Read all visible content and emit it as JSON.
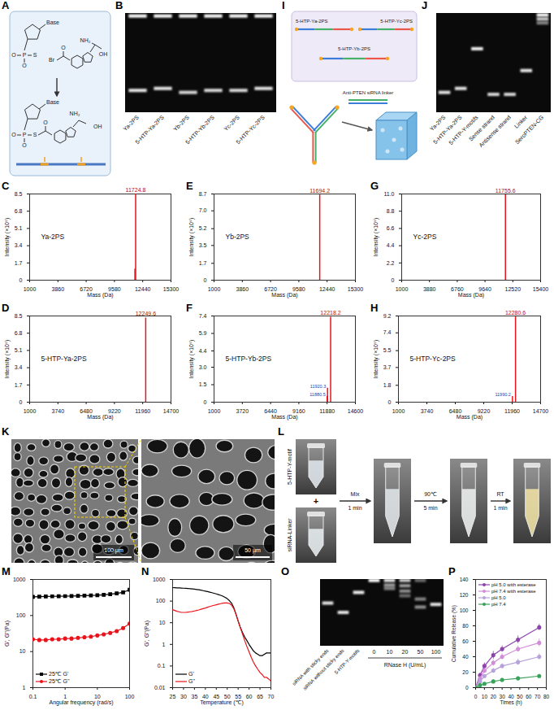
{
  "diagrams": [
    {
      "type": "scheme",
      "panel": "A",
      "labels": {
        "base": "Base",
        "bromine": "Br",
        "hydroxyl": "OH",
        "amine": "NH₂",
        "oxygen": "O",
        "phosphorus": "P",
        "sulfur": "S"
      }
    },
    {
      "type": "gel",
      "panel": "B",
      "lanes": [
        {
          "label": "Ya-2PS",
          "bands": [
            [
              0.03,
              1
            ],
            [
              0.78,
              0.9
            ]
          ]
        },
        {
          "label": "5-HTP-Ya-2PS",
          "bands": [
            [
              0.03,
              1
            ],
            [
              0.76,
              0.9
            ]
          ]
        },
        {
          "label": "Yb-2PS",
          "bands": [
            [
              0.03,
              1
            ],
            [
              0.8,
              0.85
            ]
          ]
        },
        {
          "label": "5-HTP-Yb-2PS",
          "bands": [
            [
              0.03,
              1
            ],
            [
              0.78,
              0.85
            ]
          ]
        },
        {
          "label": "Yc-2PS",
          "bands": [
            [
              0.03,
              1
            ],
            [
              0.78,
              0.85
            ]
          ]
        },
        {
          "label": "5-HTP-Yc-2PS",
          "bands": [
            [
              0.03,
              1
            ],
            [
              0.76,
              0.9
            ]
          ]
        }
      ]
    },
    {
      "type": "assembly",
      "panel": "I",
      "strands": [
        "5-HTP-Ya-2PS",
        "5-HTP-Yc-2PS",
        "5-HTP-Yb-2PS"
      ],
      "linker": "Anti-PTEN siRNA linker"
    },
    {
      "type": "gel",
      "panel": "J",
      "lanes": [
        {
          "label": "Ya-2PS",
          "bands": [
            [
              0.8,
              0.9
            ]
          ]
        },
        {
          "label": "5-HTP-Ya-2PS",
          "bands": [
            [
              0.76,
              0.9
            ]
          ]
        },
        {
          "label": "5-HTP-Y-motifs",
          "bands": [
            [
              0.36,
              0.95
            ]
          ]
        },
        {
          "label": "Sense strand",
          "bands": [
            [
              0.82,
              0.85
            ]
          ]
        },
        {
          "label": "Antisense strand",
          "bands": [
            [
              0.82,
              0.85
            ]
          ]
        },
        {
          "label": "Linker",
          "bands": [
            [
              0.58,
              0.9
            ]
          ]
        },
        {
          "label": "SeroPTEN-CG",
          "bands": [
            [
              0.02,
              1
            ],
            [
              0.06,
              0.8
            ],
            [
              0.1,
              0.5
            ]
          ]
        }
      ]
    },
    {
      "type": "sem",
      "panel": "K",
      "scale_bars": [
        "100 μm",
        "50 μm"
      ]
    },
    {
      "type": "photos",
      "panel": "L",
      "inputs": [
        "5-HTP-Y-motif",
        "siRNA-Linker"
      ],
      "plus": "+",
      "steps": [
        {
          "label": "Mix",
          "time": "1 min"
        },
        {
          "label": "90℃",
          "time": "5 min"
        },
        {
          "label": "RT",
          "time": "1 min"
        }
      ]
    },
    {
      "type": "gel",
      "panel": "O",
      "lanes": [
        {
          "label": "siRNA with sticky ends",
          "bands": [
            [
              0.36,
              0.9
            ]
          ]
        },
        {
          "label": "siRNA without sticky ends",
          "bands": [
            [
              0.5,
              0.9
            ]
          ]
        },
        {
          "label": "5-HTP-Y-motifs",
          "bands": [
            [
              0.2,
              0.95
            ]
          ]
        }
      ],
      "group": {
        "label": "RNase H (U/mL)",
        "lanes": [
          {
            "label": "0",
            "bands": [
              [
                0.02,
                1
              ]
            ]
          },
          {
            "label": "10",
            "bands": [
              [
                0.02,
                0.9
              ],
              [
                0.09,
                0.6
              ],
              [
                0.14,
                0.5
              ]
            ]
          },
          {
            "label": "20",
            "bands": [
              [
                0.02,
                0.8
              ],
              [
                0.1,
                0.6
              ],
              [
                0.18,
                0.55
              ],
              [
                0.25,
                0.4
              ]
            ]
          },
          {
            "label": "50",
            "bands": [
              [
                0.02,
                0.4
              ],
              [
                0.3,
                0.5
              ],
              [
                0.42,
                0.55
              ]
            ]
          },
          {
            "label": "100",
            "bands": [
              [
                0.38,
                0.9
              ]
            ]
          }
        ]
      }
    }
  ],
  "chart_data": [
    {
      "panel": "C",
      "type": "spectrum",
      "title": "Ya-2PS",
      "x_label": "Mass (Da)",
      "y_label": "Intensity (×10⁶)",
      "xlim": [
        1000,
        15300
      ],
      "xticks": [
        1000,
        3860,
        6720,
        9580,
        12440,
        15300
      ],
      "ylim": [
        0,
        8.5
      ],
      "yticks": [
        0,
        1.7,
        3.4,
        5.1,
        6.8,
        8.5
      ],
      "color": "#e8141c",
      "x": [
        11724.8,
        11650
      ],
      "values": [
        8.5,
        1.1
      ],
      "peak_labels": [
        "11724.8",
        null
      ]
    },
    {
      "panel": "D",
      "type": "spectrum",
      "title": "5-HTP-Ya-2PS",
      "x_label": "Mass (Da)",
      "y_label": "Intensity (×10⁶)",
      "xlim": [
        1000,
        14700
      ],
      "xticks": [
        1000,
        3740,
        6480,
        9220,
        11960,
        14700
      ],
      "ylim": [
        0,
        8.5
      ],
      "yticks": [
        0,
        1.7,
        3.4,
        5.1,
        6.8,
        8.5
      ],
      "color": "#e8141c",
      "x": [
        12249.6
      ],
      "values": [
        8.3
      ],
      "peak_labels": [
        "12249.6"
      ]
    },
    {
      "panel": "E",
      "type": "spectrum",
      "title": "Yb-2PS",
      "x_label": "Mass (Da)",
      "y_label": "Intensity (×10⁶)",
      "xlim": [
        1000,
        15300
      ],
      "xticks": [
        1000,
        3860,
        6720,
        9580,
        12440,
        15300
      ],
      "ylim": [
        0,
        8.7
      ],
      "yticks": [
        0,
        1.7,
        3.5,
        5.2,
        {
          "value": 7,
          "label": "7.0"
        },
        8.7
      ],
      "color": "#e8141c",
      "x": [
        11694.2
      ],
      "values": [
        8.6
      ],
      "peak_labels": [
        "11694.2"
      ]
    },
    {
      "panel": "F",
      "type": "spectrum",
      "title": "5-HTP-Yb-2PS",
      "x_label": "Mass (Da)",
      "y_label": "Intensity (×10⁶)",
      "xlim": [
        1000,
        14600
      ],
      "xticks": [
        1000,
        3720,
        6440,
        9160,
        11880,
        14600
      ],
      "ylim": [
        0,
        7.4
      ],
      "yticks": [
        0,
        1.5,
        {
          "value": 3,
          "label": "3.0"
        },
        4.4,
        5.9,
        7.4
      ],
      "color": "#e8141c",
      "x": [
        12218.2,
        11880.5,
        11920.3
      ],
      "values": [
        7.3,
        0.5,
        1.2
      ],
      "peak_labels": [
        "12218.2",
        "11880.5",
        "11920.3"
      ]
    },
    {
      "panel": "G",
      "type": "spectrum",
      "title": "Yc-2PS",
      "x_label": "Mass (Da)",
      "y_label": "Intensity (×10⁶)",
      "xlim": [
        1000,
        15400
      ],
      "xticks": [
        1000,
        3880,
        6760,
        9640,
        12520,
        15400
      ],
      "ylim": [
        0,
        11
      ],
      "yticks": [
        0,
        2.2,
        4.4,
        6.6,
        8.8,
        {
          "value": 11,
          "label": "11.0"
        }
      ],
      "color": "#e8141c",
      "x": [
        11755.6
      ],
      "values": [
        10.9
      ],
      "peak_labels": [
        "11755.6"
      ]
    },
    {
      "panel": "H",
      "type": "spectrum",
      "title": "5-HTP-Yc-2PS",
      "x_label": "Mass (Da)",
      "y_label": "Intensity (×10⁶)",
      "xlim": [
        1000,
        14700
      ],
      "xticks": [
        1000,
        3740,
        6480,
        9220,
        11960,
        14700
      ],
      "ylim": [
        0,
        9.2
      ],
      "yticks": [
        0,
        1.8,
        3.7,
        5.5,
        7.4,
        9.2
      ],
      "color": "#e8141c",
      "x": [
        12280.6,
        11990.2
      ],
      "values": [
        9.1,
        0.6
      ],
      "peak_labels": [
        "12280.6",
        "11990.2"
      ]
    },
    {
      "panel": "M",
      "type": "line",
      "x_label": "Angular frequency (rad/s)",
      "y_label": "G', G''(Pa)",
      "log": true,
      "xlim": [
        0.1,
        100
      ],
      "xticks": [
        0.1,
        1,
        10,
        100
      ],
      "ylim": [
        1,
        1000
      ],
      "yticks": [
        1,
        10,
        100,
        1000
      ],
      "legend": "bottom-left",
      "x": [
        0.1,
        0.158,
        0.251,
        0.398,
        0.631,
        1,
        1.58,
        2.51,
        3.98,
        6.31,
        10,
        15.8,
        25.1,
        39.8,
        63.1,
        100
      ],
      "series": [
        {
          "name": "25℃ G'",
          "color": "#000000",
          "marker": "square",
          "values": [
            330,
            335,
            338,
            340,
            342,
            345,
            348,
            350,
            355,
            360,
            365,
            375,
            390,
            410,
            440,
            520
          ]
        },
        {
          "name": "25℃ G''",
          "color": "#e8141c",
          "marker": "circle",
          "values": [
            22,
            21,
            21,
            22,
            22,
            23,
            23,
            24,
            25,
            26,
            28,
            30,
            33,
            37,
            45,
            60
          ]
        }
      ]
    },
    {
      "panel": "N",
      "type": "line",
      "x_label": "Temperature (℃)",
      "y_label": "G', G''(Pa)",
      "log": "y",
      "xlim": [
        25,
        70
      ],
      "xticks": [
        25,
        30,
        35,
        40,
        45,
        50,
        55,
        60,
        65,
        70
      ],
      "ylim": [
        0.01,
        1000
      ],
      "yticks": [
        0.01,
        0.1,
        1,
        10,
        100,
        1000
      ],
      "legend": "bottom-left",
      "x": [
        25,
        26,
        27,
        28,
        29,
        30,
        31,
        32,
        33,
        34,
        35,
        36,
        37,
        38,
        39,
        40,
        41,
        42,
        43,
        44,
        45,
        46,
        47,
        48,
        49,
        50,
        51,
        52,
        53,
        54,
        55,
        56,
        57,
        58,
        59,
        60,
        61,
        62,
        63,
        64,
        65,
        66,
        67,
        68,
        69,
        70
      ],
      "series": [
        {
          "name": "G'",
          "color": "#000000",
          "values": [
            420,
            415,
            410,
            405,
            400,
            395,
            390,
            385,
            375,
            365,
            355,
            345,
            335,
            320,
            305,
            290,
            275,
            260,
            245,
            230,
            215,
            200,
            185,
            170,
            150,
            130,
            105,
            80,
            50,
            25,
            12,
            6,
            3.5,
            2.2,
            1.5,
            1.0,
            0.7,
            0.5,
            0.4,
            0.35,
            0.3,
            0.3,
            0.35,
            0.4,
            0.4,
            0.4
          ]
        },
        {
          "name": "G''",
          "color": "#e8141c",
          "values": [
            40,
            37,
            34,
            32,
            30,
            30,
            30,
            31,
            32,
            33,
            35,
            37,
            39,
            42,
            45,
            48,
            52,
            56,
            60,
            64,
            68,
            72,
            76,
            80,
            82,
            82,
            78,
            65,
            45,
            25,
            12,
            6,
            3,
            1.5,
            0.8,
            0.45,
            0.25,
            0.15,
            0.1,
            0.07,
            0.05,
            0.04,
            0.03,
            0.03,
            0.025,
            0.02
          ]
        }
      ]
    },
    {
      "panel": "P",
      "type": "line",
      "x_label": "Times (h)",
      "y_label": "Cumulative Release (%)",
      "xlim": [
        0,
        80
      ],
      "xticks": [
        0,
        10,
        20,
        30,
        40,
        50,
        60,
        70,
        80
      ],
      "ylim": [
        0,
        140
      ],
      "yticks": [
        0,
        20,
        40,
        60,
        80,
        100,
        120,
        140
      ],
      "legend": "top-left",
      "marker": "circle",
      "x": [
        0,
        5,
        10,
        20,
        30,
        48,
        72
      ],
      "series": [
        {
          "name": "pH 5.0 with esterase",
          "color": "#8e44ad",
          "values": [
            0,
            16,
            28,
            42,
            50,
            62,
            78
          ],
          "errors": [
            0,
            3,
            4,
            5,
            4,
            5,
            4
          ]
        },
        {
          "name": "pH 7.4 with esterase",
          "color": "#d18ed8",
          "values": [
            0,
            12,
            22,
            32,
            40,
            50,
            58
          ],
          "errors": [
            0,
            2,
            3,
            4,
            4,
            4,
            5
          ]
        },
        {
          "name": "pH 5.0",
          "color": "#b7a3dc",
          "values": [
            0,
            8,
            15,
            22,
            28,
            33,
            40
          ],
          "errors": [
            0,
            2,
            2,
            3,
            3,
            4,
            4
          ]
        },
        {
          "name": "pH 7.4",
          "color": "#3aa35a",
          "values": [
            0,
            3,
            5,
            8,
            10,
            12,
            15
          ],
          "errors": [
            0,
            1,
            1,
            2,
            2,
            2,
            2
          ]
        }
      ]
    }
  ]
}
